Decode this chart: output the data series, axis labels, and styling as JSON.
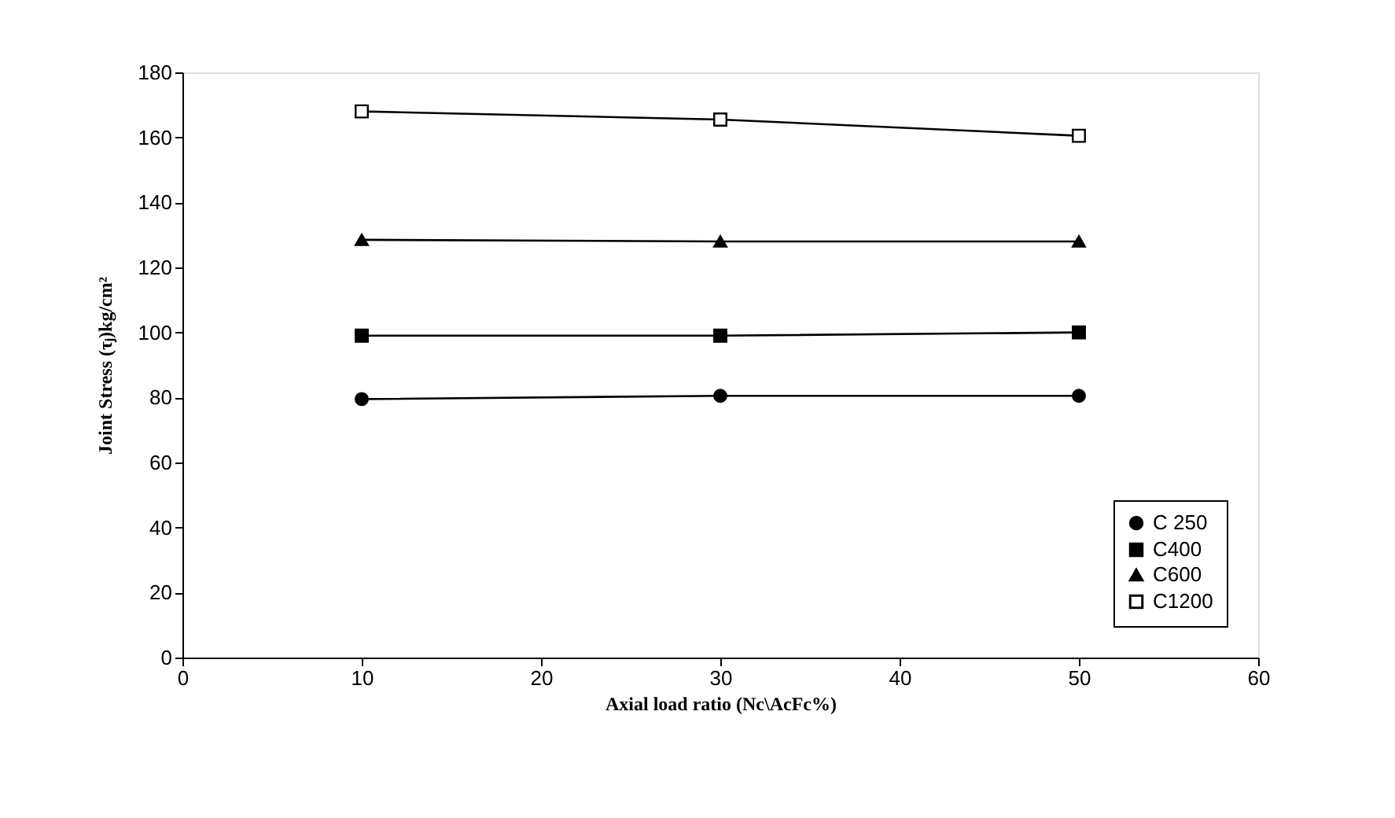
{
  "chart_data": {
    "type": "line",
    "xlabel": "Axial load ratio (Nc\\AcFc%)",
    "ylabel": "Joint Stress (τⱼ)kg/cm²",
    "x": [
      10,
      30,
      50
    ],
    "series": [
      {
        "name": "C 250",
        "color": "#000000",
        "marker": "circle",
        "values": [
          79.5,
          80.5,
          80.5
        ]
      },
      {
        "name": "C400",
        "color": "#000000",
        "marker": "square",
        "values": [
          99,
          99,
          100
        ]
      },
      {
        "name": "C600",
        "color": "#000000",
        "marker": "triangle",
        "values": [
          128.5,
          128,
          128
        ]
      },
      {
        "name": "C1200",
        "color": "#000000",
        "marker": "square",
        "values": [
          168,
          165.5,
          160.5
        ]
      }
    ],
    "xlim": [
      0,
      60
    ],
    "xticks": [
      0,
      10,
      20,
      30,
      40,
      50,
      60
    ],
    "ylim": [
      0,
      180
    ],
    "yticks": [
      0,
      20,
      40,
      60,
      80,
      100,
      120,
      140,
      160,
      180
    ],
    "grid": false,
    "legend": "bottom right",
    "line_style": "solid"
  }
}
